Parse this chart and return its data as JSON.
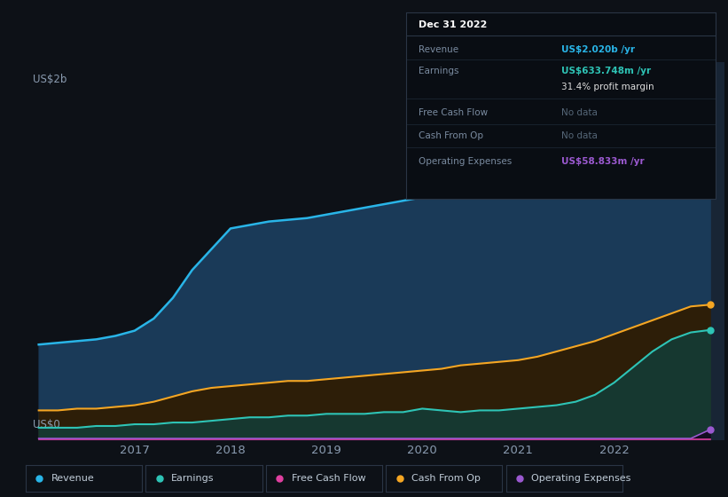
{
  "background_color": "#0d1117",
  "plot_bg_color": "#0d1117",
  "grid_color": "#1a2535",
  "ylabel_text": "US$2b",
  "ylabel0_text": "US$0",
  "x_years": [
    2016.0,
    2016.2,
    2016.4,
    2016.6,
    2016.8,
    2017.0,
    2017.2,
    2017.4,
    2017.6,
    2017.8,
    2018.0,
    2018.2,
    2018.4,
    2018.6,
    2018.8,
    2019.0,
    2019.2,
    2019.4,
    2019.6,
    2019.8,
    2020.0,
    2020.2,
    2020.4,
    2020.6,
    2020.8,
    2021.0,
    2021.2,
    2021.4,
    2021.6,
    2021.8,
    2022.0,
    2022.2,
    2022.4,
    2022.6,
    2022.8,
    2023.0
  ],
  "revenue": [
    0.55,
    0.56,
    0.57,
    0.58,
    0.6,
    0.63,
    0.7,
    0.82,
    0.98,
    1.1,
    1.22,
    1.24,
    1.26,
    1.27,
    1.28,
    1.3,
    1.32,
    1.34,
    1.36,
    1.38,
    1.4,
    1.42,
    1.44,
    1.46,
    1.5,
    1.55,
    1.58,
    1.61,
    1.65,
    1.7,
    1.76,
    1.82,
    1.89,
    1.96,
    2.02,
    2.02
  ],
  "earnings": [
    0.07,
    0.07,
    0.07,
    0.08,
    0.08,
    0.09,
    0.09,
    0.1,
    0.1,
    0.11,
    0.12,
    0.13,
    0.13,
    0.14,
    0.14,
    0.15,
    0.15,
    0.15,
    0.16,
    0.16,
    0.18,
    0.17,
    0.16,
    0.17,
    0.17,
    0.18,
    0.19,
    0.2,
    0.22,
    0.26,
    0.33,
    0.42,
    0.51,
    0.58,
    0.62,
    0.634
  ],
  "free_cash_flow": [
    0.003,
    0.003,
    0.003,
    0.003,
    0.003,
    0.003,
    0.003,
    0.003,
    0.003,
    0.003,
    0.003,
    0.003,
    0.003,
    0.003,
    0.003,
    0.003,
    0.003,
    0.003,
    0.003,
    0.003,
    0.003,
    0.003,
    0.003,
    0.003,
    0.003,
    0.003,
    0.003,
    0.003,
    0.003,
    0.003,
    0.003,
    0.003,
    0.003,
    0.003,
    0.003,
    0.003
  ],
  "cash_from_op": [
    0.17,
    0.17,
    0.18,
    0.18,
    0.19,
    0.2,
    0.22,
    0.25,
    0.28,
    0.3,
    0.31,
    0.32,
    0.33,
    0.34,
    0.34,
    0.35,
    0.36,
    0.37,
    0.38,
    0.39,
    0.4,
    0.41,
    0.43,
    0.44,
    0.45,
    0.46,
    0.48,
    0.51,
    0.54,
    0.57,
    0.61,
    0.65,
    0.69,
    0.73,
    0.77,
    0.78
  ],
  "op_expenses": [
    0.008,
    0.008,
    0.008,
    0.008,
    0.008,
    0.008,
    0.008,
    0.008,
    0.008,
    0.008,
    0.008,
    0.008,
    0.008,
    0.008,
    0.008,
    0.008,
    0.008,
    0.008,
    0.008,
    0.008,
    0.008,
    0.008,
    0.008,
    0.008,
    0.008,
    0.008,
    0.008,
    0.008,
    0.008,
    0.008,
    0.008,
    0.008,
    0.008,
    0.008,
    0.008,
    0.059
  ],
  "color_revenue": "#29b5e8",
  "color_earnings": "#2ec4b6",
  "color_free_cash_flow": "#e040a0",
  "color_cash_from_op": "#f5a623",
  "color_op_expenses": "#9b59d0",
  "fill_revenue_color": "#1a3a58",
  "fill_earnings_color": "#163830",
  "fill_cashop_color": "#2d1e08",
  "shade_rect_x": 2022.3,
  "x_tick_labels": [
    "2017",
    "2018",
    "2019",
    "2020",
    "2021",
    "2022"
  ],
  "x_tick_positions": [
    2017.0,
    2018.0,
    2019.0,
    2020.0,
    2021.0,
    2022.0
  ],
  "ylim": [
    0.0,
    2.18
  ],
  "xlim": [
    2015.9,
    2023.15
  ],
  "info_box": {
    "date": "Dec 31 2022",
    "rows": [
      {
        "label": "Revenue",
        "value": "US$2.020b /yr",
        "value_color": "#29b5e8",
        "nodata": false
      },
      {
        "label": "Earnings",
        "value": "US$633.748m /yr",
        "value_color": "#2ec4b6",
        "nodata": false
      },
      {
        "label": "",
        "value": "31.4% profit margin",
        "value_color": "#dddddd",
        "nodata": false
      },
      {
        "label": "Free Cash Flow",
        "value": "No data",
        "value_color": "#556677",
        "nodata": true
      },
      {
        "label": "Cash From Op",
        "value": "No data",
        "value_color": "#556677",
        "nodata": true
      },
      {
        "label": "Operating Expenses",
        "value": "US$58.833m /yr",
        "value_color": "#9b59d0",
        "nodata": false
      }
    ]
  },
  "legend_items": [
    {
      "label": "Revenue",
      "color": "#29b5e8"
    },
    {
      "label": "Earnings",
      "color": "#2ec4b6"
    },
    {
      "label": "Free Cash Flow",
      "color": "#e040a0"
    },
    {
      "label": "Cash From Op",
      "color": "#f5a623"
    },
    {
      "label": "Operating Expenses",
      "color": "#9b59d0"
    }
  ]
}
